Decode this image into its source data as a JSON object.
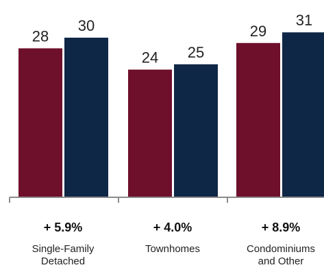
{
  "chart_data": {
    "type": "bar",
    "categories": [
      {
        "change": "+ 5.9%",
        "label_lines": [
          "Single-Family",
          "Detached"
        ]
      },
      {
        "change": "+ 4.0%",
        "label_lines": [
          "Townhomes"
        ]
      },
      {
        "change": "+ 8.9%",
        "label_lines": [
          "Condominiums",
          "and Other"
        ]
      }
    ],
    "series": [
      {
        "values": [
          28,
          24,
          29
        ],
        "color": "#6e0f2c"
      },
      {
        "values": [
          30,
          25,
          31
        ],
        "color": "#0f2746"
      }
    ],
    "ylim": [
      0,
      36
    ],
    "axis_color": "#8a8a8a"
  }
}
